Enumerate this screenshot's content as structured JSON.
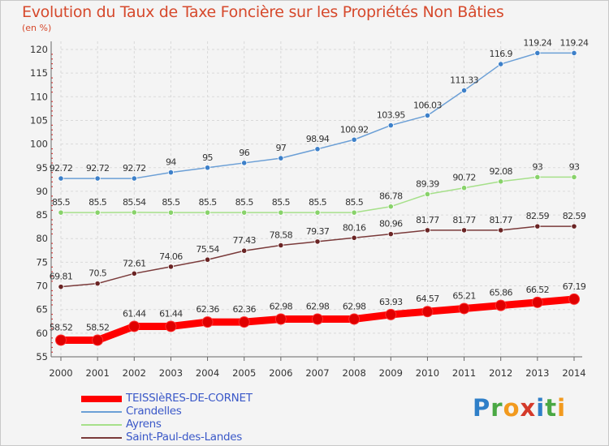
{
  "title": "Evolution du Taux de Taxe Foncière sur les Propriétés Non Bâties",
  "unit_label": "(en %)",
  "logo": {
    "letters": [
      {
        "ch": "P",
        "color": "#2f7fc8"
      },
      {
        "ch": "r",
        "color": "#4aa844"
      },
      {
        "ch": "o",
        "color": "#f29a1e"
      },
      {
        "ch": "x",
        "color": "#d43a2a"
      },
      {
        "ch": "i",
        "color": "#2f7fc8"
      },
      {
        "ch": "t",
        "color": "#4aa844"
      },
      {
        "ch": "i",
        "color": "#f29a1e"
      }
    ]
  },
  "chart_data": {
    "type": "line",
    "title": "Evolution du Taux de Taxe Foncière sur les Propriétés Non Bâties",
    "ylabel": "(en %)",
    "x": [
      "2000",
      "2001",
      "2002",
      "2003",
      "2004",
      "2005",
      "2006",
      "2007",
      "2008",
      "2009",
      "2010",
      "2011",
      "2012",
      "2013",
      "2014"
    ],
    "ylim": [
      55,
      120
    ],
    "yticks": [
      55,
      60,
      65,
      70,
      75,
      80,
      85,
      90,
      95,
      100,
      105,
      110,
      115,
      120
    ],
    "grid": true,
    "legend_position": "bottom-left",
    "series": [
      {
        "name": "TEISSIèRES-DE-CORNET",
        "color": "#ff0000",
        "marker_color": "#e00000",
        "emphasis": true,
        "values": [
          58.52,
          58.52,
          61.44,
          61.44,
          62.36,
          62.36,
          62.98,
          62.98,
          62.98,
          63.93,
          64.57,
          65.21,
          65.86,
          66.52,
          67.19
        ],
        "labels": [
          "58.52",
          "58.52",
          "61.44",
          "61.44",
          "62.36",
          "62.36",
          "62.98",
          "62.98",
          "62.98",
          "63.93",
          "64.57",
          "65.21",
          "65.86",
          "66.52",
          "67.19"
        ]
      },
      {
        "name": "Crandelles",
        "color": "#6b9fd6",
        "marker_color": "#3d80c9",
        "emphasis": false,
        "values": [
          92.72,
          92.72,
          92.72,
          94,
          95,
          96,
          97,
          98.94,
          100.92,
          103.95,
          106.03,
          111.33,
          116.9,
          119.24,
          119.24
        ],
        "labels": [
          "92.72",
          "92.72",
          "92.72",
          "94",
          "95",
          "96",
          "97",
          "98.94",
          "100.92",
          "103.95",
          "106.03",
          "111.33",
          "116.9",
          "119.24",
          "119.24"
        ]
      },
      {
        "name": "Ayrens",
        "color": "#a6e08a",
        "marker_color": "#88d26a",
        "emphasis": false,
        "values": [
          85.5,
          85.5,
          85.54,
          85.5,
          85.5,
          85.5,
          85.5,
          85.5,
          85.5,
          86.78,
          89.39,
          90.72,
          92.08,
          93,
          93
        ],
        "labels": [
          "85.5",
          "85.5",
          "85.54",
          "85.5",
          "85.5",
          "85.5",
          "85.5",
          "85.5",
          "85.5",
          "86.78",
          "89.39",
          "90.72",
          "92.08",
          "93",
          "93"
        ]
      },
      {
        "name": "Saint-Paul-des-Landes",
        "color": "#7a3a3a",
        "marker_color": "#6a2424",
        "emphasis": false,
        "values": [
          69.81,
          70.5,
          72.61,
          74.06,
          75.54,
          77.43,
          78.58,
          79.37,
          80.16,
          80.96,
          81.77,
          81.77,
          81.77,
          82.59,
          82.59
        ],
        "labels": [
          "69.81",
          "70.5",
          "72.61",
          "74.06",
          "75.54",
          "77.43",
          "78.58",
          "79.37",
          "80.16",
          "80.96",
          "81.77",
          "81.77",
          "81.77",
          "82.59",
          "82.59"
        ]
      }
    ]
  }
}
